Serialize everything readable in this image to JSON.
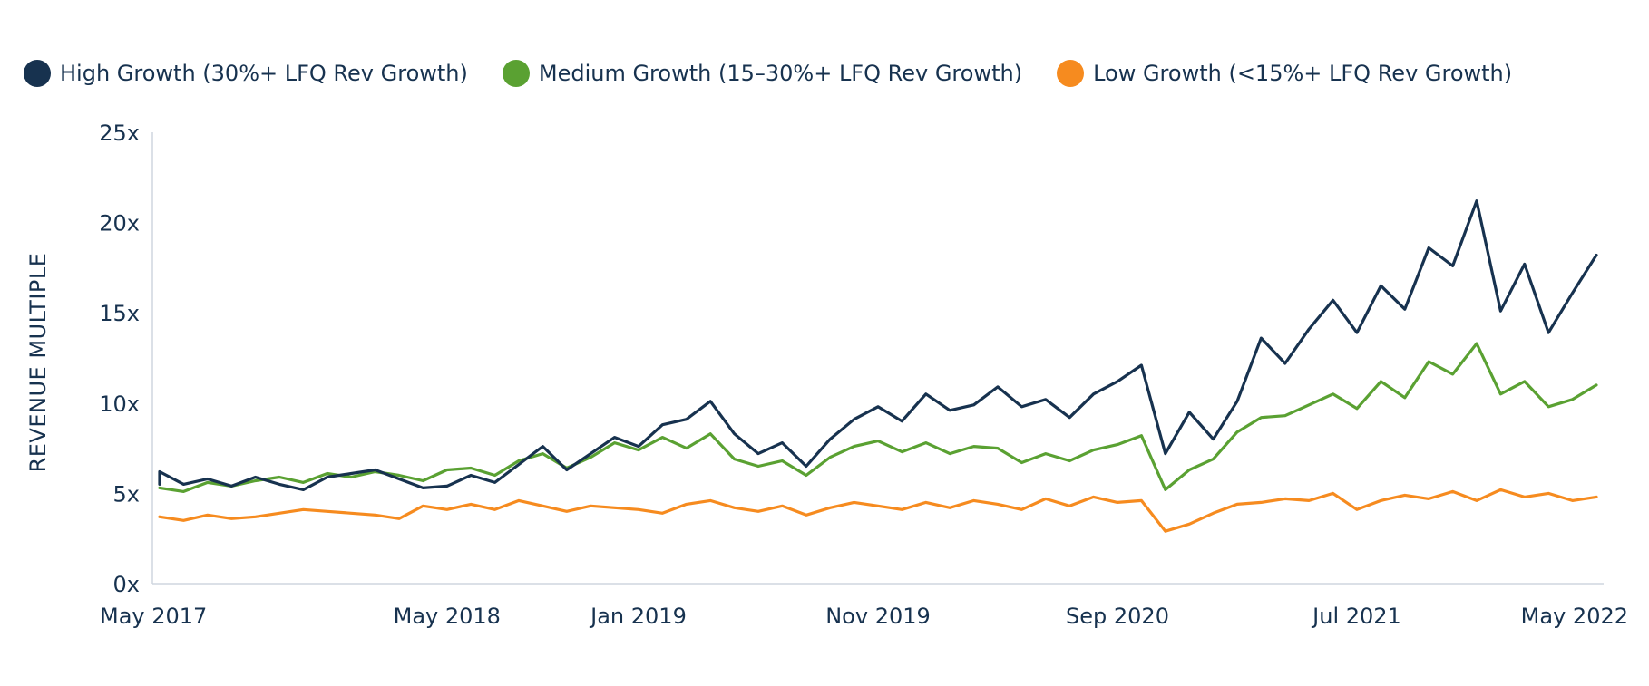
{
  "chart_data": {
    "type": "line",
    "title": "",
    "xlabel": "",
    "ylabel": "REVENUE MULTIPLE",
    "x_range": [
      "2017-05",
      "2022-05"
    ],
    "ylim": [
      0,
      25
    ],
    "y_ticks": [
      0,
      5,
      10,
      15,
      20,
      25
    ],
    "y_tick_labels": [
      "0x",
      "5x",
      "10x",
      "15x",
      "20x",
      "25x"
    ],
    "x_tick_dates": [
      "2017-05",
      "2018-05",
      "2019-01",
      "2019-11",
      "2020-09",
      "2021-07",
      "2022-05"
    ],
    "x_tick_labels": [
      "May 2017",
      "May 2018",
      "Jan 2019",
      "Nov 2019",
      "Sep 2020",
      "Jul 2021",
      "May 2022"
    ],
    "grid": false,
    "legend_position": "top-left",
    "series": [
      {
        "name": "High Growth (30%+ LFQ Rev Growth)",
        "color": "#17324f",
        "points": [
          [
            "2017-05",
            5.5
          ],
          [
            "2017-05",
            6.2
          ],
          [
            "2017-06",
            5.5
          ],
          [
            "2017-07",
            5.8
          ],
          [
            "2017-08",
            5.4
          ],
          [
            "2017-09",
            5.9
          ],
          [
            "2017-10",
            5.5
          ],
          [
            "2017-11",
            5.2
          ],
          [
            "2017-12",
            5.9
          ],
          [
            "2018-01",
            6.1
          ],
          [
            "2018-02",
            6.3
          ],
          [
            "2018-03",
            5.8
          ],
          [
            "2018-04",
            5.3
          ],
          [
            "2018-05",
            5.4
          ],
          [
            "2018-06",
            6.0
          ],
          [
            "2018-07",
            5.6
          ],
          [
            "2018-08",
            6.6
          ],
          [
            "2018-09",
            7.6
          ],
          [
            "2018-10",
            6.3
          ],
          [
            "2018-11",
            7.2
          ],
          [
            "2018-12",
            8.1
          ],
          [
            "2019-01",
            7.6
          ],
          [
            "2019-02",
            8.8
          ],
          [
            "2019-03",
            9.1
          ],
          [
            "2019-04",
            10.1
          ],
          [
            "2019-05",
            8.3
          ],
          [
            "2019-06",
            7.2
          ],
          [
            "2019-07",
            7.8
          ],
          [
            "2019-08",
            6.5
          ],
          [
            "2019-09",
            8.0
          ],
          [
            "2019-10",
            9.1
          ],
          [
            "2019-11",
            9.8
          ],
          [
            "2019-12",
            9.0
          ],
          [
            "2020-01",
            10.5
          ],
          [
            "2020-02",
            9.6
          ],
          [
            "2020-03",
            9.9
          ],
          [
            "2020-04",
            10.9
          ],
          [
            "2020-05",
            9.8
          ],
          [
            "2020-06",
            10.2
          ],
          [
            "2020-07",
            9.2
          ],
          [
            "2020-08",
            10.5
          ],
          [
            "2020-09",
            11.2
          ],
          [
            "2020-10",
            12.1
          ],
          [
            "2020-11",
            7.2
          ],
          [
            "2020-12",
            9.5
          ],
          [
            "2021-01",
            8.0
          ],
          [
            "2021-02",
            10.1
          ],
          [
            "2021-03",
            13.6
          ],
          [
            "2021-04",
            12.2
          ],
          [
            "2021-05",
            14.1
          ],
          [
            "2021-06",
            15.7
          ],
          [
            "2021-07",
            13.9
          ],
          [
            "2021-08",
            16.5
          ],
          [
            "2021-09",
            15.2
          ],
          [
            "2021-10",
            18.6
          ],
          [
            "2021-11",
            17.6
          ],
          [
            "2021-12",
            21.2
          ],
          [
            "2022-01",
            15.1
          ],
          [
            "2022-02",
            17.7
          ],
          [
            "2022-03",
            13.9
          ],
          [
            "2022-04",
            16.1
          ],
          [
            "2022-05",
            18.2
          ]
        ],
        "values_note": ""
      },
      {
        "name": "Medium Growth (15–30%+ LFQ Rev Growth)",
        "color": "#5aa132",
        "points": [
          [
            "2017-05",
            5.3
          ],
          [
            "2017-06",
            5.1
          ],
          [
            "2017-07",
            5.6
          ],
          [
            "2017-08",
            5.4
          ],
          [
            "2017-09",
            5.7
          ],
          [
            "2017-10",
            5.9
          ],
          [
            "2017-11",
            5.6
          ],
          [
            "2017-12",
            6.1
          ],
          [
            "2018-01",
            5.9
          ],
          [
            "2018-02",
            6.2
          ],
          [
            "2018-03",
            6.0
          ],
          [
            "2018-04",
            5.7
          ],
          [
            "2018-05",
            6.3
          ],
          [
            "2018-06",
            6.4
          ],
          [
            "2018-07",
            6.0
          ],
          [
            "2018-08",
            6.8
          ],
          [
            "2018-09",
            7.2
          ],
          [
            "2018-10",
            6.4
          ],
          [
            "2018-11",
            7.0
          ],
          [
            "2018-12",
            7.8
          ],
          [
            "2019-01",
            7.4
          ],
          [
            "2019-02",
            8.1
          ],
          [
            "2019-03",
            7.5
          ],
          [
            "2019-04",
            8.3
          ],
          [
            "2019-05",
            6.9
          ],
          [
            "2019-06",
            6.5
          ],
          [
            "2019-07",
            6.8
          ],
          [
            "2019-08",
            6.0
          ],
          [
            "2019-09",
            7.0
          ],
          [
            "2019-10",
            7.6
          ],
          [
            "2019-11",
            7.9
          ],
          [
            "2019-12",
            7.3
          ],
          [
            "2020-01",
            7.8
          ],
          [
            "2020-02",
            7.2
          ],
          [
            "2020-03",
            7.6
          ],
          [
            "2020-04",
            7.5
          ],
          [
            "2020-05",
            6.7
          ],
          [
            "2020-06",
            7.2
          ],
          [
            "2020-07",
            6.8
          ],
          [
            "2020-08",
            7.4
          ],
          [
            "2020-09",
            7.7
          ],
          [
            "2020-10",
            8.2
          ],
          [
            "2020-11",
            5.2
          ],
          [
            "2020-12",
            6.3
          ],
          [
            "2021-01",
            6.9
          ],
          [
            "2021-02",
            8.4
          ],
          [
            "2021-03",
            9.2
          ],
          [
            "2021-04",
            9.3
          ],
          [
            "2021-05",
            9.9
          ],
          [
            "2021-06",
            10.5
          ],
          [
            "2021-07",
            9.7
          ],
          [
            "2021-08",
            11.2
          ],
          [
            "2021-09",
            10.3
          ],
          [
            "2021-10",
            12.3
          ],
          [
            "2021-11",
            11.6
          ],
          [
            "2021-12",
            13.3
          ],
          [
            "2022-01",
            10.5
          ],
          [
            "2022-02",
            11.2
          ],
          [
            "2022-03",
            9.8
          ],
          [
            "2022-04",
            10.2
          ],
          [
            "2022-05",
            11.0
          ]
        ],
        "values_note": ""
      },
      {
        "name": "Low Growth (<15%+ LFQ Rev Growth)",
        "color": "#f68b1f",
        "points": [
          [
            "2017-05",
            3.7
          ],
          [
            "2017-06",
            3.5
          ],
          [
            "2017-07",
            3.8
          ],
          [
            "2017-08",
            3.6
          ],
          [
            "2017-09",
            3.7
          ],
          [
            "2017-10",
            3.9
          ],
          [
            "2017-11",
            4.1
          ],
          [
            "2017-12",
            4.0
          ],
          [
            "2018-01",
            3.9
          ],
          [
            "2018-02",
            3.8
          ],
          [
            "2018-03",
            3.6
          ],
          [
            "2018-04",
            4.3
          ],
          [
            "2018-05",
            4.1
          ],
          [
            "2018-06",
            4.4
          ],
          [
            "2018-07",
            4.1
          ],
          [
            "2018-08",
            4.6
          ],
          [
            "2018-09",
            4.3
          ],
          [
            "2018-10",
            4.0
          ],
          [
            "2018-11",
            4.3
          ],
          [
            "2018-12",
            4.2
          ],
          [
            "2019-01",
            4.1
          ],
          [
            "2019-02",
            3.9
          ],
          [
            "2019-03",
            4.4
          ],
          [
            "2019-04",
            4.6
          ],
          [
            "2019-05",
            4.2
          ],
          [
            "2019-06",
            4.0
          ],
          [
            "2019-07",
            4.3
          ],
          [
            "2019-08",
            3.8
          ],
          [
            "2019-09",
            4.2
          ],
          [
            "2019-10",
            4.5
          ],
          [
            "2019-11",
            4.3
          ],
          [
            "2019-12",
            4.1
          ],
          [
            "2020-01",
            4.5
          ],
          [
            "2020-02",
            4.2
          ],
          [
            "2020-03",
            4.6
          ],
          [
            "2020-04",
            4.4
          ],
          [
            "2020-05",
            4.1
          ],
          [
            "2020-06",
            4.7
          ],
          [
            "2020-07",
            4.3
          ],
          [
            "2020-08",
            4.8
          ],
          [
            "2020-09",
            4.5
          ],
          [
            "2020-10",
            4.6
          ],
          [
            "2020-11",
            2.9
          ],
          [
            "2020-12",
            3.3
          ],
          [
            "2021-01",
            3.9
          ],
          [
            "2021-02",
            4.4
          ],
          [
            "2021-03",
            4.5
          ],
          [
            "2021-04",
            4.7
          ],
          [
            "2021-05",
            4.6
          ],
          [
            "2021-06",
            5.0
          ],
          [
            "2021-07",
            4.1
          ],
          [
            "2021-08",
            4.6
          ],
          [
            "2021-09",
            4.9
          ],
          [
            "2021-10",
            4.7
          ],
          [
            "2021-11",
            5.1
          ],
          [
            "2021-12",
            4.6
          ],
          [
            "2022-01",
            5.2
          ],
          [
            "2022-02",
            4.8
          ],
          [
            "2022-03",
            5.0
          ],
          [
            "2022-04",
            4.6
          ],
          [
            "2022-05",
            4.8
          ]
        ],
        "values_note": ""
      }
    ]
  }
}
